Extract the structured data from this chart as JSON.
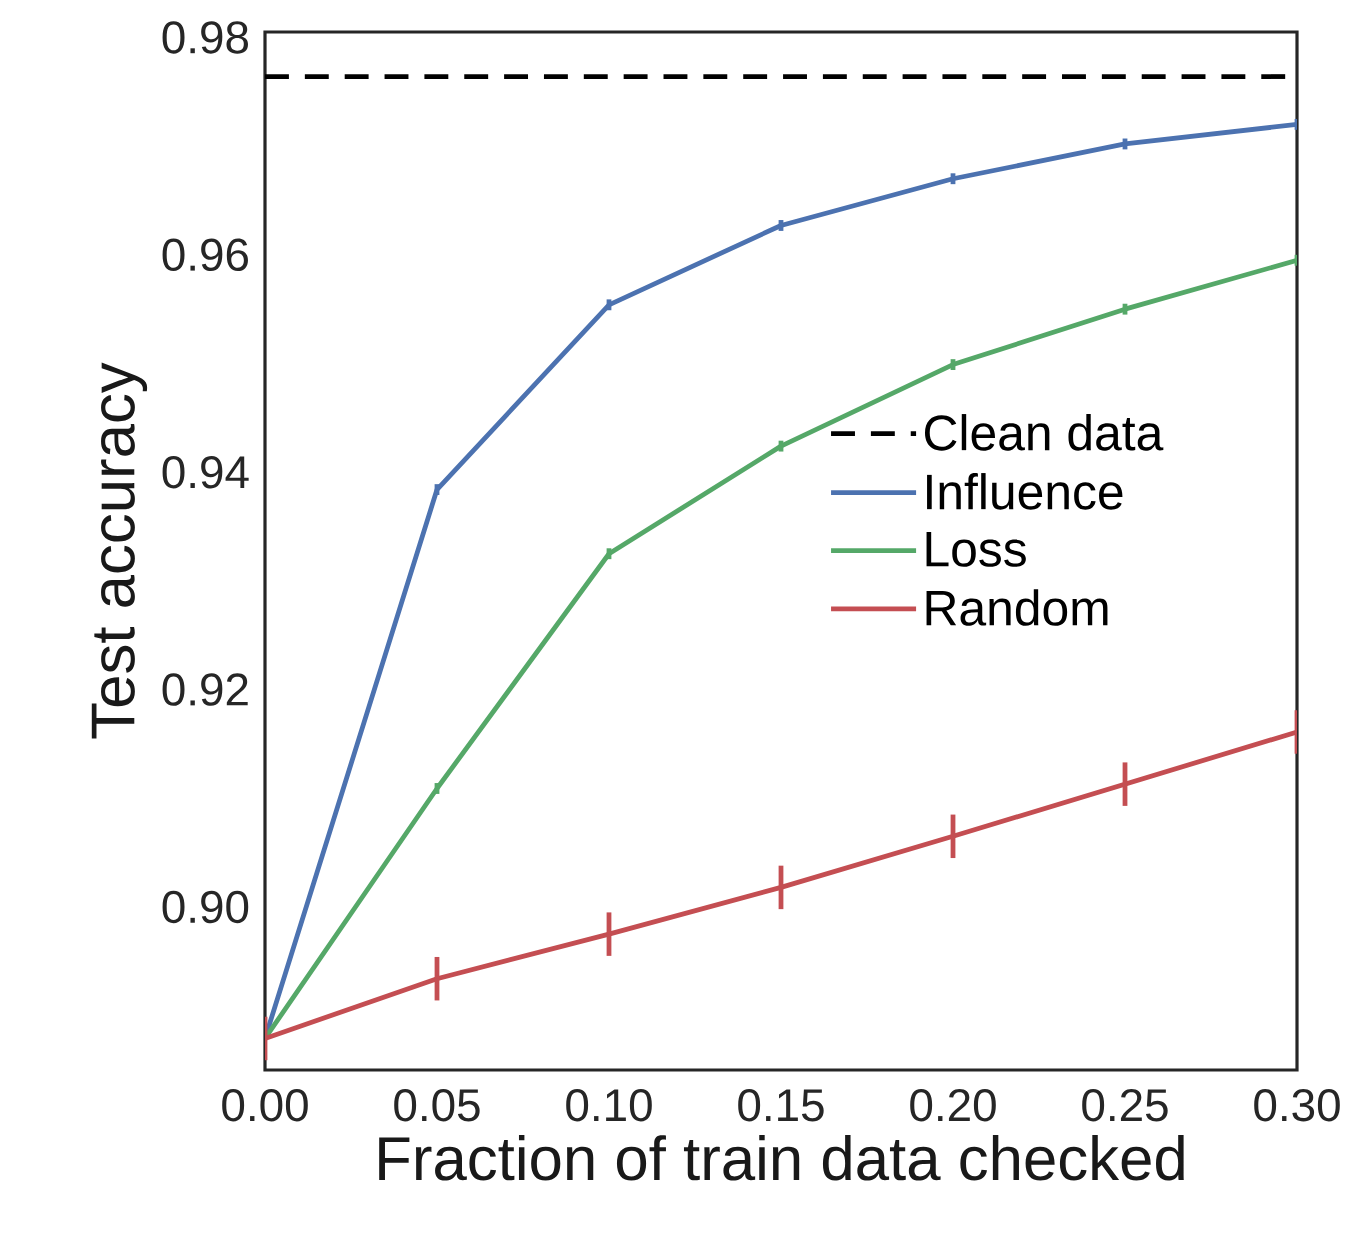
{
  "chart_data": {
    "type": "line",
    "xlabel": "Fraction of train data checked",
    "ylabel": "Test accuracy",
    "x": [
      0.0,
      0.05,
      0.1,
      0.15,
      0.2,
      0.25,
      0.3
    ],
    "series": [
      {
        "name": "Clean data",
        "color": "#000000",
        "line_style": "dashed",
        "x": [
          0.0,
          0.3
        ],
        "values": [
          0.9764,
          0.9764
        ]
      },
      {
        "name": "Influence",
        "color": "#4c72b0",
        "values": [
          0.8879,
          0.9384,
          0.9554,
          0.9627,
          0.967,
          0.9702,
          0.972
        ],
        "errors": [
          null,
          0.0005,
          0.0005,
          0.0005,
          0.0005,
          0.0005,
          0.0005
        ]
      },
      {
        "name": "Loss",
        "color": "#55a868",
        "values": [
          0.8879,
          0.9109,
          0.9325,
          0.9424,
          0.9499,
          0.955,
          0.9595
        ],
        "errors": [
          null,
          0.0005,
          0.0005,
          0.0005,
          0.0005,
          0.0005,
          0.0005
        ]
      },
      {
        "name": "Random",
        "color": "#c44e52",
        "values": [
          0.8879,
          0.8934,
          0.8975,
          0.9018,
          0.9065,
          0.9113,
          0.9161
        ],
        "errors": [
          0.002,
          0.002,
          0.002,
          0.002,
          0.002,
          0.002,
          0.002
        ]
      }
    ],
    "xlim": [
      0.0,
      0.3
    ],
    "ylim": [
      0.885,
      0.9805
    ],
    "xticks": [
      {
        "value": 0.0,
        "label": "0.00"
      },
      {
        "value": 0.05,
        "label": "0.05"
      },
      {
        "value": 0.1,
        "label": "0.10"
      },
      {
        "value": 0.15,
        "label": "0.15"
      },
      {
        "value": 0.2,
        "label": "0.20"
      },
      {
        "value": 0.25,
        "label": "0.25"
      },
      {
        "value": 0.3,
        "label": "0.30"
      }
    ],
    "yticks": [
      {
        "value": 0.9,
        "label": "0.90"
      },
      {
        "value": 0.92,
        "label": "0.92"
      },
      {
        "value": 0.94,
        "label": "0.94"
      },
      {
        "value": 0.96,
        "label": "0.96"
      },
      {
        "value": 0.98,
        "label": "0.98"
      }
    ],
    "legend": "right",
    "grid": false
  }
}
